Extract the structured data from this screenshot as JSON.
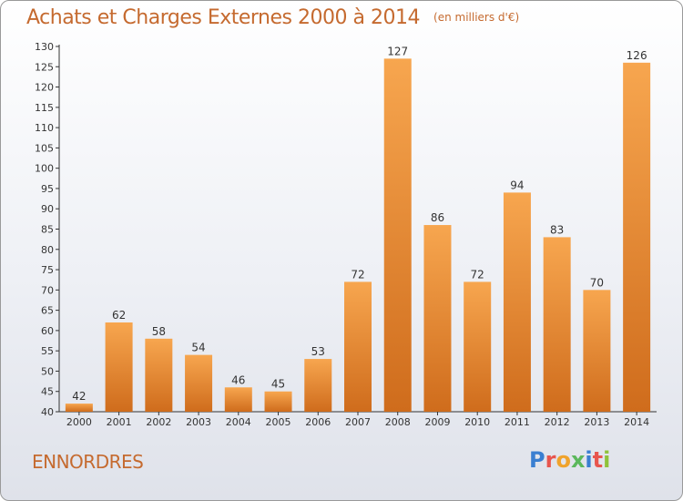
{
  "header": {
    "title": "Achats et Charges Externes 2000 à 2014",
    "unit": "(en milliers d'€)"
  },
  "footer": {
    "place": "ENNORDRES",
    "logo_text": "Proxiti",
    "logo_colors": [
      "#3a7fd1",
      "#e8554e",
      "#f0a32c",
      "#5cb85c",
      "#3a7fd1",
      "#e8554e",
      "#8fc23a"
    ]
  },
  "colors": {
    "bar_light": "#f7a64f",
    "bar_dark": "#cf6c1c",
    "title": "#c56a2f"
  },
  "chart_data": {
    "type": "bar",
    "categories": [
      "2000",
      "2001",
      "2002",
      "2003",
      "2004",
      "2005",
      "2006",
      "2007",
      "2008",
      "2009",
      "2010",
      "2011",
      "2012",
      "2013",
      "2014"
    ],
    "values": [
      42,
      62,
      58,
      54,
      46,
      45,
      53,
      72,
      127,
      86,
      72,
      94,
      83,
      70,
      126
    ],
    "ylim": [
      40,
      130
    ],
    "ytick_step": 5,
    "grid": false,
    "legend": "none"
  }
}
